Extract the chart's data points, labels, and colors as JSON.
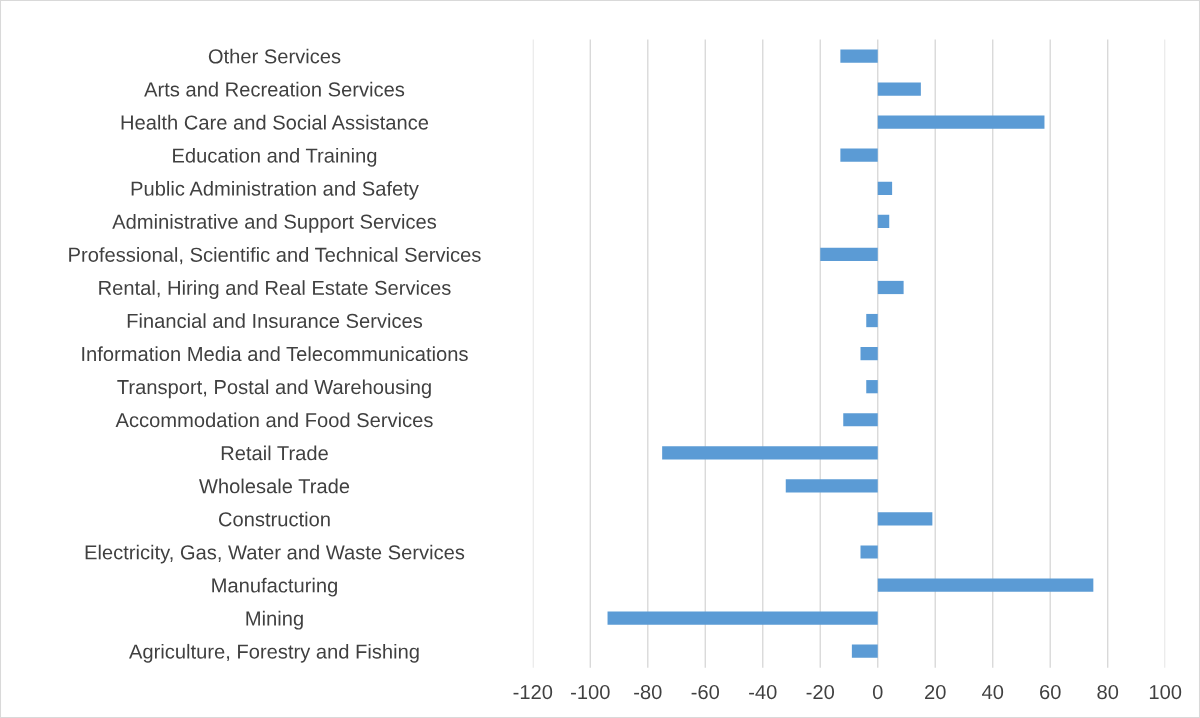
{
  "chart_data": {
    "type": "bar",
    "orientation": "horizontal",
    "categories": [
      "Other Services",
      "Arts and Recreation Services",
      "Health Care and Social Assistance",
      "Education and Training",
      "Public Administration and Safety",
      "Administrative and Support Services",
      "Professional, Scientific and Technical Services",
      "Rental, Hiring and Real Estate Services",
      "Financial and Insurance Services",
      "Information Media and Telecommunications",
      "Transport, Postal and Warehousing",
      "Accommodation and Food Services",
      "Retail Trade",
      "Wholesale Trade",
      "Construction",
      "Electricity, Gas, Water and Waste Services",
      "Manufacturing",
      "Mining",
      "Agriculture, Forestry and Fishing"
    ],
    "values": [
      -13,
      15,
      58,
      -13,
      5,
      4,
      -20,
      9,
      -4,
      -6,
      -4,
      -12,
      -75,
      -32,
      19,
      -6,
      75,
      -94,
      -9
    ],
    "color": "#5b9bd5",
    "xlim": [
      -120,
      100
    ],
    "xticks": [
      -120,
      -100,
      -80,
      -60,
      -40,
      -20,
      0,
      20,
      40,
      60,
      80,
      100
    ],
    "grid": "x"
  }
}
